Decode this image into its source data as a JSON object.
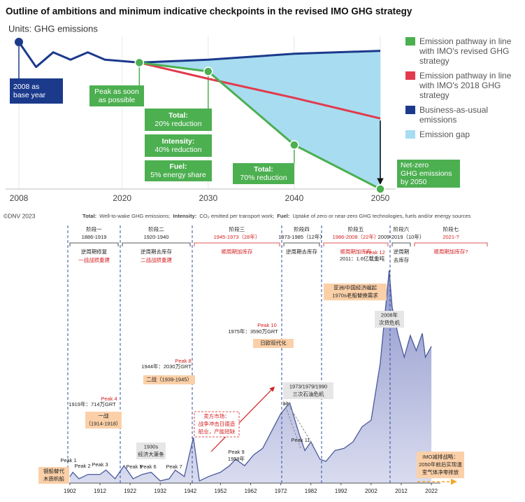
{
  "chart_data": [
    {
      "type": "line",
      "title": "Outline of ambitions and minimum indicative checkpoints in the revised IMO GHG strategy",
      "subtitle": "Units: GHG emissions",
      "x": [
        2008,
        2010,
        2012,
        2014,
        2016,
        2018,
        2020,
        2022,
        2030,
        2040,
        2050
      ],
      "series": [
        {
          "name": "Emission pathway in line with IMO's revised GHG strategy",
          "color": "#4caf50",
          "values": [
            null,
            null,
            null,
            null,
            null,
            null,
            null,
            86,
            80,
            30,
            0
          ]
        },
        {
          "name": "Emission pathway in line with IMO's 2018 GHG strategy",
          "color": "#e23b4e",
          "values": [
            null,
            null,
            null,
            null,
            null,
            null,
            null,
            86,
            75,
            62,
            48
          ]
        },
        {
          "name": "Business-as-usual emissions",
          "color": "#1b3a8c",
          "values": [
            100,
            83,
            93,
            88,
            93,
            88,
            87,
            86,
            88,
            92,
            94
          ]
        },
        {
          "name": "Emission gap",
          "color": "#a8dcf0"
        }
      ],
      "xlim": [
        2008,
        2050
      ],
      "ylim": [
        0,
        100
      ],
      "xticks": [
        2008,
        2020,
        2030,
        2040,
        2050
      ],
      "grid": true,
      "annotations": [
        {
          "lines": [
            "2008 as",
            "base year"
          ]
        },
        {
          "lines": [
            "Peak as soon",
            "as possible"
          ]
        },
        {
          "label": "Total:",
          "text": "20% reduction"
        },
        {
          "label": "Intensity:",
          "text": "40% reduction"
        },
        {
          "label": "Fuel:",
          "text": "5% energy share"
        },
        {
          "label": "Total:",
          "text": "70% reduction"
        },
        {
          "lines": [
            "Net-zero",
            "GHG emissions",
            "by 2050"
          ]
        }
      ],
      "source": "©DNV 2023",
      "notes": [
        {
          "label": "Total:",
          "text": "Well-to-wake GHG emissions;"
        },
        {
          "label": "Intensity:",
          "text": "CO₂ emitted per transport work;"
        },
        {
          "label": "Fuel:",
          "text": "Uptake of zero or near-zero GHG technologies, fuels and/or energy sources"
        }
      ]
    },
    {
      "type": "area",
      "x": [
        1902,
        1903,
        1905,
        1908,
        1912,
        1914,
        1917,
        1920,
        1923,
        1926,
        1929,
        1932,
        1935,
        1937,
        1940,
        1943,
        1945,
        1948,
        1952,
        1955,
        1957,
        1960,
        1963,
        1966,
        1969,
        1972,
        1975,
        1978,
        1980,
        1982,
        1985,
        1987,
        1990,
        1993,
        1996,
        1999,
        2002,
        2005,
        2008,
        2009,
        2011,
        2013,
        2015,
        2017,
        2019,
        2020,
        2022
      ],
      "values": [
        3,
        5,
        2,
        4,
        4,
        6,
        2,
        8,
        2,
        4,
        5,
        1,
        2,
        6,
        3,
        21,
        1,
        3,
        5,
        8,
        11,
        8,
        13,
        16,
        24,
        32,
        37,
        23,
        15,
        19,
        11,
        10,
        15,
        16,
        19,
        26,
        29,
        55,
        98,
        81,
        68,
        58,
        68,
        61,
        69,
        58,
        63
      ],
      "color": "#4a5a9c",
      "xlim": [
        1899,
        2025
      ],
      "ylim": [
        0,
        100
      ],
      "xticks": [
        1902,
        1912,
        1922,
        1932,
        1942,
        1952,
        1962,
        1972,
        1982,
        1992,
        2002,
        2012,
        2022
      ],
      "stages": [
        {
          "name": "阶段一",
          "period": "1886-1919",
          "color": "#222222",
          "desc": [
            {
              "text": "逆周期修复",
              "color": "#222222"
            },
            {
              "text": "一战战损重建",
              "color": "#d42020"
            }
          ]
        },
        {
          "name": "阶段二",
          "period": "1920-1940",
          "color": "#222222",
          "desc": [
            {
              "text": "逆周期去库存",
              "color": "#222222"
            },
            {
              "text": "二战战损重建",
              "color": "#d42020"
            }
          ]
        },
        {
          "name": "阶段三",
          "period": "1945-1973（28年）",
          "color": "#d42020",
          "desc": [
            {
              "text": "顺周期加库存",
              "color": "#d42020"
            }
          ]
        },
        {
          "name": "阶段四",
          "period": "1973-1985（12年）",
          "color": "#222222",
          "desc": [
            {
              "text": "逆周期去库存",
              "color": "#222222"
            }
          ]
        },
        {
          "name": "阶段五",
          "period": "1986-2008（22年）",
          "color": "#d42020",
          "desc": [
            {
              "text": "顺周期加库存",
              "color": "#d42020"
            }
          ]
        },
        {
          "name": "阶段六",
          "period": "2009-2019（10年）",
          "color": "#222222",
          "desc": [
            {
              "text": "逆周期",
              "color": "#222222"
            },
            {
              "text": "去库存",
              "color": "#222222"
            }
          ]
        },
        {
          "name": "阶段七",
          "period": "2021-?",
          "color": "#d42020",
          "desc": [
            {
              "text": "顺周期加库存?",
              "color": "#d42020"
            }
          ]
        }
      ],
      "peaks": [
        {
          "label": "Peak 1",
          "color": "#222222"
        },
        {
          "label": "Peak 2",
          "color": "#222222"
        },
        {
          "label": "Peak 3",
          "color": "#222222"
        },
        {
          "label": "Peak 4",
          "color": "#d42020"
        },
        {
          "label": "Peak 5",
          "color": "#222222"
        },
        {
          "label": "Peak 6",
          "color": "#222222"
        },
        {
          "label": "Peak 7",
          "color": "#222222"
        },
        {
          "label": "Peak 8",
          "color": "#d42020"
        },
        {
          "label": "Peak 9",
          "color": "#222222"
        },
        {
          "label": "Peak 10",
          "color": "#d42020"
        },
        {
          "label": "Peak 11",
          "color": "#222222"
        },
        {
          "label": "Peak 12",
          "color": "#d42020"
        }
      ],
      "annotations": [
        {
          "lines": [
            "钢船替代",
            "木质帆船"
          ],
          "style": "orange"
        },
        {
          "lines": [
            "1919年：714万GRT"
          ],
          "style": "plain"
        },
        {
          "lines": [
            "一战",
            "（1914-1918）"
          ],
          "style": "orange"
        },
        {
          "lines": [
            "1930s",
            "经济大萧条"
          ],
          "style": "gray"
        },
        {
          "lines": [
            "1944年：2030万GRT"
          ],
          "style": "plain"
        },
        {
          "lines": [
            "二战（1939-1945）"
          ],
          "style": "orange"
        },
        {
          "lines": [
            "卖方市场：",
            "战争冲击日德造",
            "船业，产能短缺"
          ],
          "style": "dashed"
        },
        {
          "lines": [
            "1975年：3590万GRT"
          ],
          "style": "plain"
        },
        {
          "lines": [
            "日欧现代化"
          ],
          "style": "orange"
        },
        {
          "lines": [
            "1973/1979/1990",
            "三次石油危机"
          ],
          "style": "gray"
        },
        {
          "lines": [
            "2011：1.6亿载重吨"
          ],
          "style": "plain"
        },
        {
          "lines": [
            "亚洲/中国经济崛起",
            "1970s老船替换需求"
          ],
          "style": "orange"
        },
        {
          "lines": [
            "2008年",
            "次贷危机"
          ],
          "style": "gray"
        },
        {
          "lines": [
            "IMO减排战略：",
            "2050年前后实现温",
            "室气体净零排放"
          ],
          "style": "orange"
        },
        {
          "lines": [
            "1958年"
          ],
          "style": "plain"
        }
      ]
    }
  ]
}
